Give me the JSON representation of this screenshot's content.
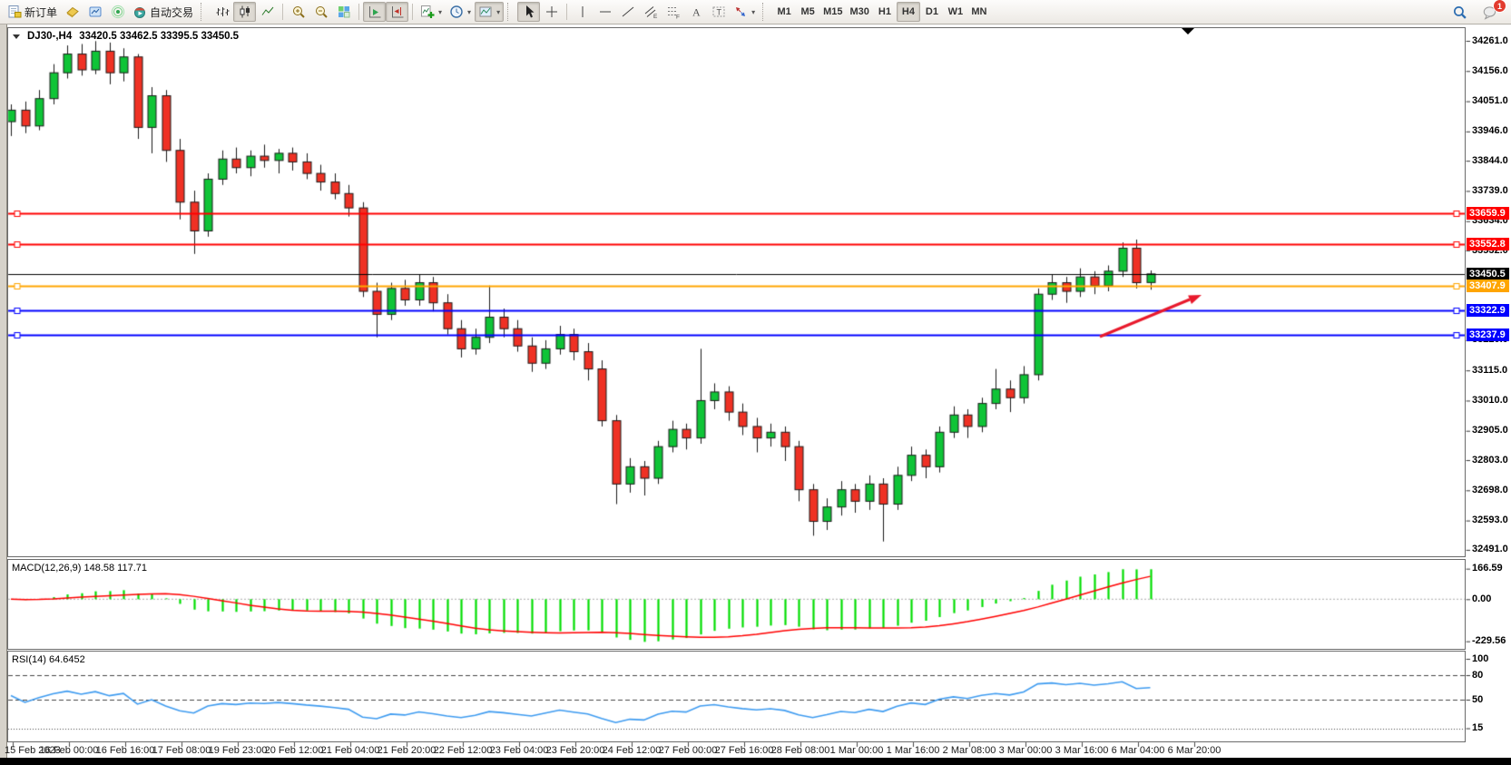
{
  "toolbar": {
    "new_order_label": "新订单",
    "autotrading_label": "自动交易",
    "timeframes": [
      "M1",
      "M5",
      "M15",
      "M30",
      "H1",
      "H4",
      "D1",
      "W1",
      "MN"
    ],
    "active_timeframe": "H4",
    "notification_count": "1"
  },
  "chart_data": {
    "type": "candlestick",
    "symbol": "DJ30-",
    "timeframe": "H4",
    "title_symbol": "DJ30-,H4",
    "title_ohlc": "33420.5 33462.5 33395.5 33450.5",
    "last_bar": {
      "open": 33420.5,
      "high": 33462.5,
      "low": 33395.5,
      "close": 33450.5
    },
    "price_axis_ticks": [
      34261.0,
      34156.0,
      34051.0,
      33946.0,
      33844.0,
      33739.0,
      33634.0,
      33532.0,
      33220.0,
      33115.0,
      33010.0,
      32905.0,
      32803.0,
      32698.0,
      32593.0,
      32491.0
    ],
    "levels": [
      {
        "price": 33659.9,
        "label": "33659.9",
        "color": "#ff0000",
        "lw": 2
      },
      {
        "price": 33552.8,
        "label": "33552.8",
        "color": "#ff0000",
        "lw": 2
      },
      {
        "price": 33450.5,
        "label": "33450.5",
        "color": "#000000",
        "lw": 1,
        "current": true
      },
      {
        "price": 33407.9,
        "label": "33407.9",
        "color": "#ffa500",
        "lw": 2
      },
      {
        "price": 33322.9,
        "label": "33322.9",
        "color": "#0000ff",
        "lw": 2
      },
      {
        "price": 33237.9,
        "label": "33237.9",
        "color": "#0000ff",
        "lw": 2
      }
    ],
    "time_labels": [
      "15 Feb 2023",
      "16 Feb 00:00",
      "16 Feb 16:00",
      "17 Feb 08:00",
      "19 Feb 23:00",
      "20 Feb 12:00",
      "21 Feb 04:00",
      "21 Feb 20:00",
      "22 Feb 12:00",
      "23 Feb 04:00",
      "23 Feb 20:00",
      "24 Feb 12:00",
      "27 Feb 00:00",
      "27 Feb 16:00",
      "28 Feb 08:00",
      "1 Mar 00:00",
      "1 Mar 16:00",
      "2 Mar 08:00",
      "3 Mar 00:00",
      "3 Mar 16:00",
      "6 Mar 04:00",
      "6 Mar 20:00"
    ],
    "candles": [
      [
        33980,
        34040,
        33930,
        34020
      ],
      [
        34020,
        34050,
        33940,
        33965
      ],
      [
        33965,
        34090,
        33950,
        34060
      ],
      [
        34060,
        34180,
        34040,
        34150
      ],
      [
        34150,
        34245,
        34130,
        34215
      ],
      [
        34215,
        34250,
        34140,
        34160
      ],
      [
        34160,
        34260,
        34145,
        34225
      ],
      [
        34225,
        34255,
        34110,
        34150
      ],
      [
        34150,
        34235,
        34120,
        34205
      ],
      [
        34205,
        34215,
        33920,
        33960
      ],
      [
        33960,
        34100,
        33870,
        34070
      ],
      [
        34070,
        34090,
        33840,
        33880
      ],
      [
        33880,
        33920,
        33640,
        33700
      ],
      [
        33700,
        33740,
        33520,
        33600
      ],
      [
        33600,
        33800,
        33580,
        33780
      ],
      [
        33780,
        33880,
        33760,
        33850
      ],
      [
        33850,
        33890,
        33800,
        33820
      ],
      [
        33820,
        33880,
        33790,
        33860
      ],
      [
        33860,
        33900,
        33820,
        33845
      ],
      [
        33845,
        33885,
        33800,
        33870
      ],
      [
        33870,
        33890,
        33810,
        33840
      ],
      [
        33840,
        33870,
        33780,
        33800
      ],
      [
        33800,
        33830,
        33740,
        33770
      ],
      [
        33770,
        33800,
        33710,
        33730
      ],
      [
        33730,
        33760,
        33650,
        33680
      ],
      [
        33680,
        33700,
        33370,
        33390
      ],
      [
        33390,
        33420,
        33230,
        33310
      ],
      [
        33310,
        33420,
        33290,
        33400
      ],
      [
        33400,
        33430,
        33340,
        33360
      ],
      [
        33360,
        33450,
        33340,
        33420
      ],
      [
        33420,
        33440,
        33320,
        33350
      ],
      [
        33350,
        33380,
        33240,
        33260
      ],
      [
        33260,
        33290,
        33160,
        33190
      ],
      [
        33190,
        33260,
        33170,
        33230
      ],
      [
        33230,
        33410,
        33210,
        33300
      ],
      [
        33300,
        33330,
        33230,
        33260
      ],
      [
        33260,
        33290,
        33180,
        33200
      ],
      [
        33200,
        33230,
        33110,
        33140
      ],
      [
        33140,
        33220,
        33120,
        33190
      ],
      [
        33190,
        33270,
        33170,
        33240
      ],
      [
        33240,
        33260,
        33150,
        33180
      ],
      [
        33180,
        33210,
        33080,
        33120
      ],
      [
        33120,
        33150,
        32920,
        32940
      ],
      [
        32940,
        32960,
        32650,
        32720
      ],
      [
        32720,
        32810,
        32690,
        32780
      ],
      [
        32780,
        32800,
        32680,
        32740
      ],
      [
        32740,
        32870,
        32720,
        32850
      ],
      [
        32850,
        32940,
        32830,
        32910
      ],
      [
        32910,
        32930,
        32840,
        32880
      ],
      [
        32880,
        33190,
        32860,
        33010
      ],
      [
        33010,
        33070,
        32980,
        33040
      ],
      [
        33040,
        33060,
        32940,
        32970
      ],
      [
        32970,
        33000,
        32890,
        32920
      ],
      [
        32920,
        32950,
        32830,
        32880
      ],
      [
        32880,
        32930,
        32850,
        32900
      ],
      [
        32900,
        32920,
        32800,
        32850
      ],
      [
        32850,
        32870,
        32660,
        32700
      ],
      [
        32700,
        32720,
        32540,
        32590
      ],
      [
        32590,
        32670,
        32560,
        32640
      ],
      [
        32640,
        32730,
        32610,
        32700
      ],
      [
        32700,
        32720,
        32620,
        32660
      ],
      [
        32660,
        32750,
        32630,
        32720
      ],
      [
        32720,
        32740,
        32520,
        32650
      ],
      [
        32650,
        32780,
        32630,
        32750
      ],
      [
        32750,
        32850,
        32730,
        32820
      ],
      [
        32820,
        32840,
        32740,
        32780
      ],
      [
        32780,
        32920,
        32760,
        32900
      ],
      [
        32900,
        32990,
        32880,
        32960
      ],
      [
        32960,
        32980,
        32880,
        32920
      ],
      [
        32920,
        33020,
        32900,
        33000
      ],
      [
        33000,
        33120,
        32980,
        33050
      ],
      [
        33050,
        33080,
        32970,
        33020
      ],
      [
        33020,
        33130,
        33000,
        33100
      ],
      [
        33100,
        33400,
        33080,
        33380
      ],
      [
        33380,
        33450,
        33360,
        33420
      ],
      [
        33420,
        33440,
        33350,
        33390
      ],
      [
        33390,
        33470,
        33370,
        33440
      ],
      [
        33440,
        33460,
        33380,
        33410
      ],
      [
        33410,
        33480,
        33390,
        33460
      ],
      [
        33460,
        33560,
        33440,
        33540
      ],
      [
        33540,
        33570,
        33400,
        33420
      ],
      [
        33420.5,
        33462.5,
        33395.5,
        33450.5
      ]
    ],
    "indicators": [
      {
        "name": "MACD",
        "params": "12,26,9",
        "label": "MACD(12,26,9) 148.58 117.71",
        "values": [
          148.58,
          117.71
        ],
        "axis_labels": [
          "166.59",
          "0.00",
          "-229.56"
        ],
        "axis_values": [
          166.59,
          0.0,
          -229.56
        ]
      },
      {
        "name": "RSI",
        "params": "14",
        "label": "RSI(14) 64.6452",
        "value": 64.6452,
        "axis_labels": [
          "100",
          "80",
          "50",
          "15"
        ],
        "axis_values": [
          100,
          80,
          50,
          15
        ],
        "level_lines": [
          80,
          50,
          15
        ]
      }
    ],
    "colors": {
      "candle_up": "#0fc437",
      "candle_down": "#ef3124",
      "wick": "#1a1a1a",
      "macd_histogram": "#00dd00",
      "macd_signal": "#ff0000",
      "rsi_line": "#3e9bf0",
      "arrow": "#e8192c",
      "level_red": "#ff0000",
      "level_orange": "#ffa500",
      "level_blue": "#0000ff"
    },
    "annotations": [
      {
        "type": "arrow",
        "color": "#e8192c",
        "direction": "up-right"
      }
    ]
  }
}
